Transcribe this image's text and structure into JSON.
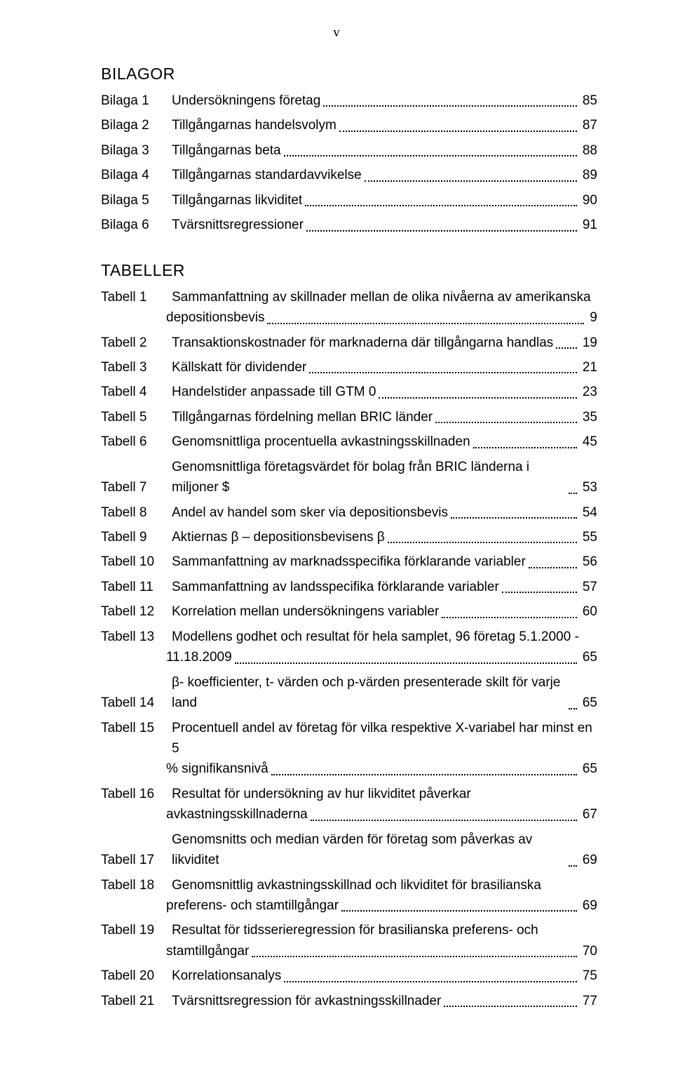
{
  "page_number": "v",
  "sections": {
    "bilagor_heading": "BILAGOR",
    "tabeller_heading": "TABELLER"
  },
  "bilagor": [
    {
      "label": "Bilaga 1",
      "title": "Undersökningens företag",
      "page": "85"
    },
    {
      "label": "Bilaga 2",
      "title": "Tillgångarnas handelsvolym",
      "page": "87"
    },
    {
      "label": "Bilaga 3",
      "title": "Tillgångarnas beta",
      "page": "88"
    },
    {
      "label": "Bilaga 4",
      "title": "Tillgångarnas standardavvikelse",
      "page": "89"
    },
    {
      "label": "Bilaga 5",
      "title": "Tillgångarnas likviditet",
      "page": "90"
    },
    {
      "label": "Bilaga 6",
      "title": "Tvärsnittsregressioner",
      "page": "91"
    }
  ],
  "tabeller": [
    {
      "label": "Tabell 1",
      "title_l1": "Sammanfattning av skillnader mellan de olika nivåerna av amerikanska",
      "title_l2": "depositionsbevis",
      "page": "9",
      "multiline": true
    },
    {
      "label": "Tabell 2",
      "title": "Transaktionskostnader för marknaderna där tillgångarna handlas",
      "page": "19"
    },
    {
      "label": "Tabell 3",
      "title": "Källskatt för dividender",
      "page": "21"
    },
    {
      "label": "Tabell 4",
      "title": "Handelstider anpassade till GTM 0",
      "page": "23"
    },
    {
      "label": "Tabell 5",
      "title": "Tillgångarnas fördelning mellan BRIC länder",
      "page": "35"
    },
    {
      "label": "Tabell 6",
      "title": "Genomsnittliga procentuella avkastningsskillnaden",
      "page": "45"
    },
    {
      "label": "Tabell 7",
      "title": "Genomsnittliga företagsvärdet för bolag från BRIC länderna i miljoner $",
      "page": "53"
    },
    {
      "label": "Tabell 8",
      "title": "Andel av handel som sker via depositionsbevis",
      "page": "54"
    },
    {
      "label": "Tabell 9",
      "title": "Aktiernas β – depositionsbevisens β",
      "page": "55"
    },
    {
      "label": "Tabell 10",
      "title": "Sammanfattning av marknadsspecifika förklarande variabler",
      "page": "56"
    },
    {
      "label": "Tabell 11",
      "title": "Sammanfattning av landsspecifika förklarande variabler",
      "page": "57"
    },
    {
      "label": "Tabell 12",
      "title": "Korrelation mellan undersökningens variabler",
      "page": "60"
    },
    {
      "label": "Tabell 13",
      "title_l1": "Modellens godhet och resultat för hela samplet, 96 företag 5.1.2000 -",
      "title_l2": "11.18.2009",
      "page": "65",
      "multiline": true
    },
    {
      "label": "Tabell 14",
      "title": "β- koefficienter, t- värden och p-värden presenterade skilt för varje land",
      "page": "65"
    },
    {
      "label": "Tabell 15",
      "title_l1": "Procentuell andel av företag för vilka respektive X-variabel har minst en 5",
      "title_l2": "% signifikansnivå",
      "page": "65",
      "multiline": true
    },
    {
      "label": "Tabell 16",
      "title_l1": "Resultat för undersökning av hur likviditet påverkar",
      "title_l2": "avkastningsskillnaderna",
      "page": "67",
      "multiline": true
    },
    {
      "label": "Tabell 17",
      "title": "Genomsnitts och median värden för företag som påverkas av likviditet",
      "page": "69"
    },
    {
      "label": "Tabell 18",
      "title_l1": "Genomsnittlig avkastningsskillnad och likviditet för brasilianska",
      "title_l2": "preferens- och stamtillgångar",
      "page": "69",
      "multiline": true
    },
    {
      "label": "Tabell 19",
      "title_l1": "Resultat för tidsserieregression för brasilianska preferens- och",
      "title_l2": "stamtillgångar",
      "page": "70",
      "multiline": true
    },
    {
      "label": "Tabell 20",
      "title": "Korrelationsanalys",
      "page": "75"
    },
    {
      "label": "Tabell 21",
      "title": "Tvärsnittsregression för avkastningsskillnader",
      "page": "77"
    }
  ]
}
